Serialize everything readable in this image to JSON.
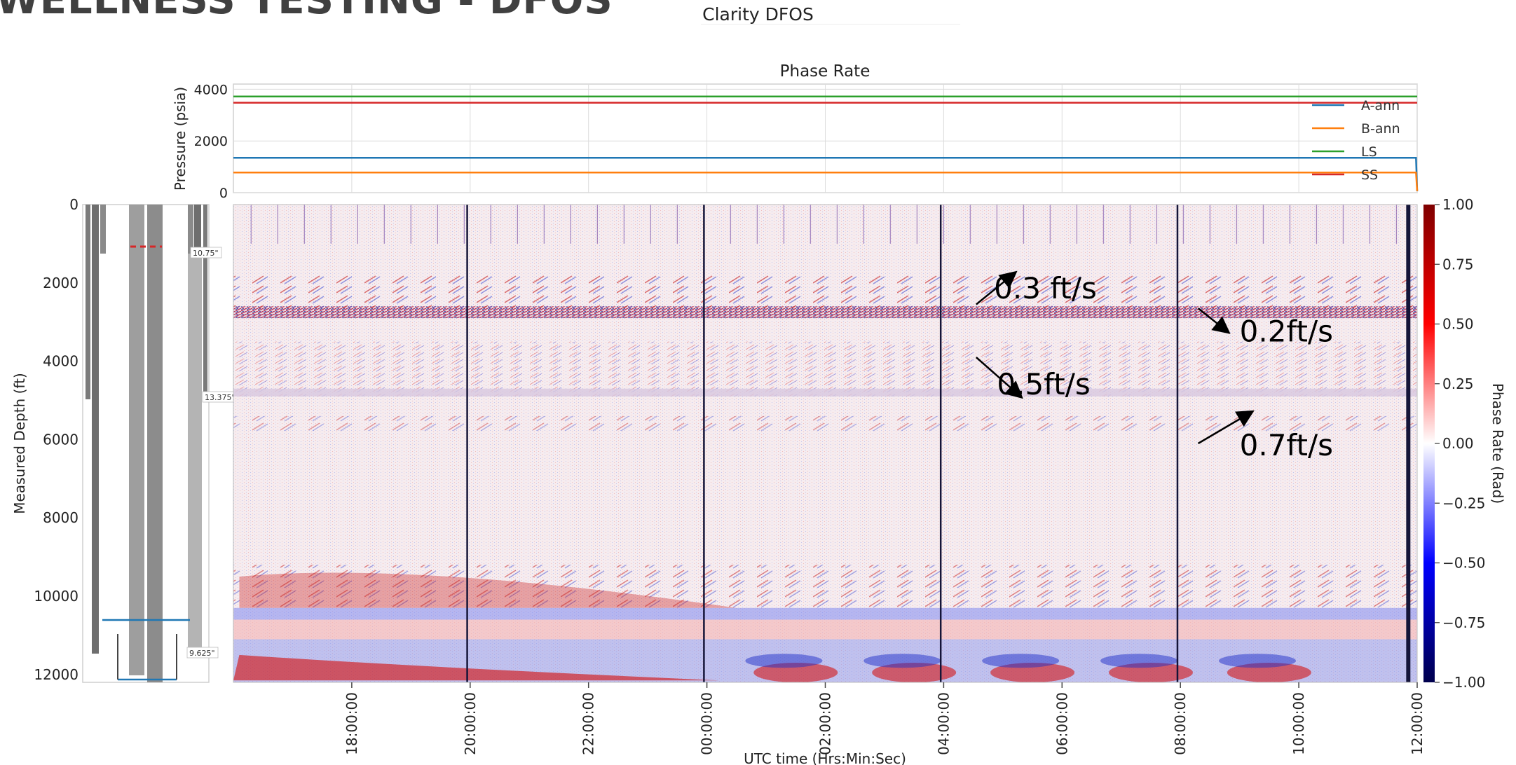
{
  "slide_title": "WELLNESS TESTING - DFOS",
  "app_title": "Clarity DFOS",
  "chart_data": [
    {
      "type": "line",
      "title": "Phase Rate",
      "ylabel": "Pressure (psia)",
      "ylim": [
        0,
        4200
      ],
      "yticks": [
        "0",
        "2000",
        "4000"
      ],
      "xlim_hours": [
        16,
        36
      ],
      "grid": true,
      "legend_position": "top-right",
      "series": [
        {
          "name": "A-ann",
          "color": "#1f77b4",
          "x": [
            16,
            35.98,
            36.0
          ],
          "y": [
            1350,
            1350,
            60
          ]
        },
        {
          "name": "B-ann",
          "color": "#ff7f0e",
          "x": [
            16,
            35.98,
            36.0
          ],
          "y": [
            780,
            780,
            60
          ]
        },
        {
          "name": "LS",
          "color": "#2ca02c",
          "x": [
            16,
            36
          ],
          "y": [
            3720,
            3720
          ]
        },
        {
          "name": "SS",
          "color": "#d62728",
          "x": [
            16,
            36
          ],
          "y": [
            3480,
            3480
          ]
        }
      ]
    },
    {
      "type": "heatmap",
      "xlabel": "UTC time (Hrs:Min:Sec)",
      "ylabel": "Measured Depth (ft)",
      "xticks": [
        "18:00:00",
        "20:00:00",
        "22:00:00",
        "00:00:00",
        "02:00:00",
        "04:00:00",
        "06:00:00",
        "08:00:00",
        "10:00:00",
        "12:00:00"
      ],
      "xtick_hours": [
        18,
        20,
        22,
        24,
        26,
        28,
        30,
        32,
        34,
        36
      ],
      "yticks": [
        "0",
        "2000",
        "4000",
        "6000",
        "8000",
        "10000",
        "12000"
      ],
      "ylim": [
        0,
        12200
      ],
      "colorbar": {
        "label": "Phase Rate (Rad)",
        "range": [
          -1.0,
          1.0
        ],
        "ticks": [
          "1.00",
          "0.75",
          "0.50",
          "0.25",
          "0.00",
          "−0.25",
          "−0.50",
          "−0.75",
          "−1.00"
        ],
        "colormap": "seismic"
      },
      "vertical_markers_hours": [
        19.95,
        23.95,
        27.95,
        31.95,
        35.85
      ],
      "annotations": [
        {
          "text": "0.3 ft/s",
          "hours": 28.85,
          "depth": 2150
        },
        {
          "text": "0.2ft/s",
          "hours": 33.0,
          "depth": 3250
        },
        {
          "text": "0.5ft/s",
          "hours": 28.9,
          "depth": 4600
        },
        {
          "text": "0.7ft/s",
          "hours": 33.0,
          "depth": 6150
        }
      ]
    }
  ],
  "wellbore": {
    "casing_labels": [
      "10.75\"",
      "13.375\"",
      "9.625\""
    ]
  }
}
